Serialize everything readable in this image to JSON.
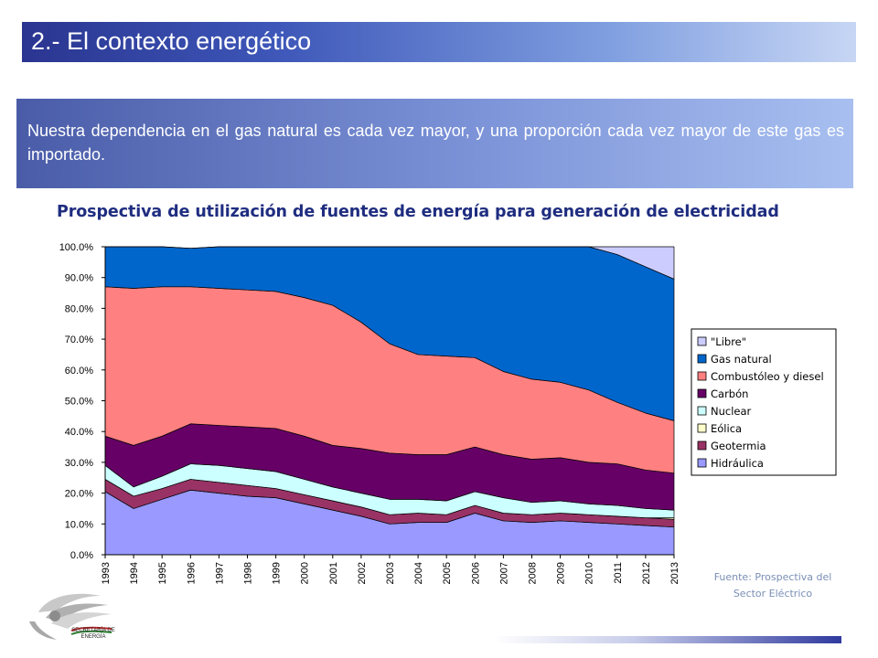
{
  "header": {
    "title": "2.- El contexto energético"
  },
  "banner": {
    "text": "Nuestra dependencia en el gas natural es cada vez mayor, y una proporción cada vez mayor de este gas es importado."
  },
  "chart_title": "Prospectiva de utilización de fuentes de energía para generación de electricidad",
  "chart_data": {
    "type": "area",
    "title": "Prospectiva de utilización de fuentes de energía para generación de electricidad",
    "stacked": true,
    "x": [
      "1993",
      "1994",
      "1995",
      "1996",
      "1997",
      "1998",
      "1999",
      "2000",
      "2001",
      "2002",
      "2003",
      "2004",
      "2005",
      "2006",
      "2007",
      "2008",
      "2009",
      "2010",
      "2011",
      "2012",
      "2013"
    ],
    "ylim": [
      0,
      100
    ],
    "yticks": [
      "0.0%",
      "10.0%",
      "20.0%",
      "30.0%",
      "40.0%",
      "50.0%",
      "60.0%",
      "70.0%",
      "80.0%",
      "90.0%",
      "100.0%"
    ],
    "legend_position": "right",
    "series": [
      {
        "name": "Hidráulica",
        "color": "#9999ff",
        "values": [
          20.5,
          15,
          18,
          21,
          20,
          19,
          18.5,
          16.5,
          14.5,
          12.5,
          10,
          10.5,
          10.5,
          13.5,
          11,
          10.5,
          11,
          10.5,
          10,
          9.5,
          9
        ]
      },
      {
        "name": "Geotermia",
        "color": "#993366",
        "values": [
          4,
          4,
          3.5,
          3.5,
          3.5,
          3.5,
          3,
          3,
          3,
          3,
          3,
          3,
          2.5,
          2.5,
          2.5,
          2.5,
          2.5,
          2.5,
          2.5,
          2.5,
          2.5
        ]
      },
      {
        "name": "Eólica",
        "color": "#ffffcc",
        "values": [
          0,
          0,
          0,
          0,
          0,
          0,
          0,
          0,
          0,
          0,
          0,
          0,
          0,
          0,
          0,
          0,
          0,
          0,
          0,
          0,
          0.5
        ]
      },
      {
        "name": "Nuclear",
        "color": "#ccffff",
        "values": [
          4.5,
          3,
          4,
          5,
          5.5,
          5.5,
          5.5,
          5,
          4.5,
          4.5,
          5,
          4.5,
          4.5,
          4.5,
          5,
          4,
          4,
          3.5,
          3.5,
          3,
          2.5
        ]
      },
      {
        "name": "Carbón",
        "color": "#660066",
        "values": [
          9.5,
          13.5,
          13,
          13,
          13,
          13.5,
          14,
          14,
          13.5,
          14.5,
          15,
          14.5,
          15,
          14.5,
          14,
          14,
          14,
          13.5,
          13.5,
          12.5,
          12
        ]
      },
      {
        "name": "Combustóleo y diesel",
        "color": "#ff8080",
        "values": [
          48.5,
          51,
          48.5,
          44.5,
          44.5,
          44.5,
          44.5,
          45,
          45.5,
          41,
          35.5,
          32.5,
          32,
          29,
          27,
          26,
          24.5,
          23.5,
          20,
          18.5,
          17
        ]
      },
      {
        "name": "Gas natural",
        "color": "#0066cc",
        "values": [
          13,
          13.5,
          13,
          12.5,
          13.5,
          14,
          14.5,
          16.5,
          19,
          24.5,
          31.5,
          35,
          35.5,
          36,
          40.5,
          43,
          44,
          46.5,
          48,
          47.5,
          46
        ]
      },
      {
        "name": "\"Libre\"",
        "color": "#ccccff",
        "values": [
          0,
          0,
          0,
          0,
          0,
          0,
          0,
          0,
          0,
          0,
          0,
          0,
          0,
          0,
          0,
          0,
          0,
          0,
          2.5,
          6.5,
          10.5
        ]
      }
    ]
  },
  "source": {
    "line1": "Fuente: Prospectiva del",
    "line2": "Sector Eléctrico"
  },
  "logo": {
    "line1": "SECRETARÍA DE",
    "line2": "ENERGÍA"
  }
}
